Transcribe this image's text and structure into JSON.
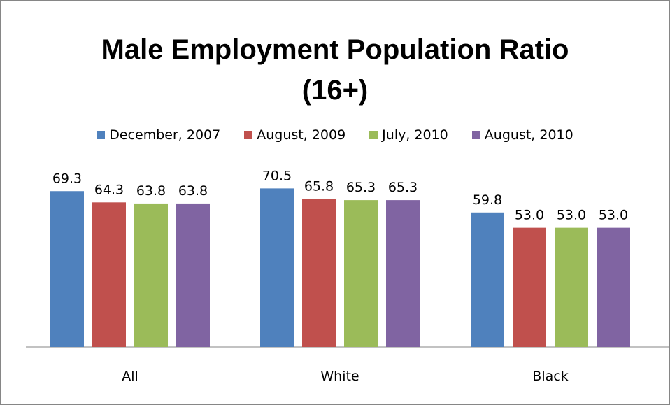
{
  "chart_data": {
    "type": "bar",
    "title_line1": "Male Employment Population Ratio",
    "title_line2": "(16+)",
    "categories": [
      "All",
      "White",
      "Black"
    ],
    "series": [
      {
        "name": "December, 2007",
        "color": "#4F81BD",
        "values": [
          69.3,
          70.5,
          59.8
        ],
        "labels": [
          "69.3",
          "70.5",
          "59.8"
        ]
      },
      {
        "name": "August, 2009",
        "color": "#C0504D",
        "values": [
          64.3,
          65.8,
          53.0
        ],
        "labels": [
          "64.3",
          "65.8",
          "53.0"
        ]
      },
      {
        "name": "July, 2010",
        "color": "#9BBB59",
        "values": [
          63.8,
          65.3,
          53.0
        ],
        "labels": [
          "63.8",
          "65.3",
          "53.0"
        ]
      },
      {
        "name": "August, 2010",
        "color": "#8064A2",
        "values": [
          63.8,
          65.3,
          53.0
        ],
        "labels": [
          "63.8",
          "65.3",
          "53.0"
        ]
      }
    ],
    "ylim": [
      0,
      80
    ],
    "legend_position": "top",
    "grid": false
  }
}
